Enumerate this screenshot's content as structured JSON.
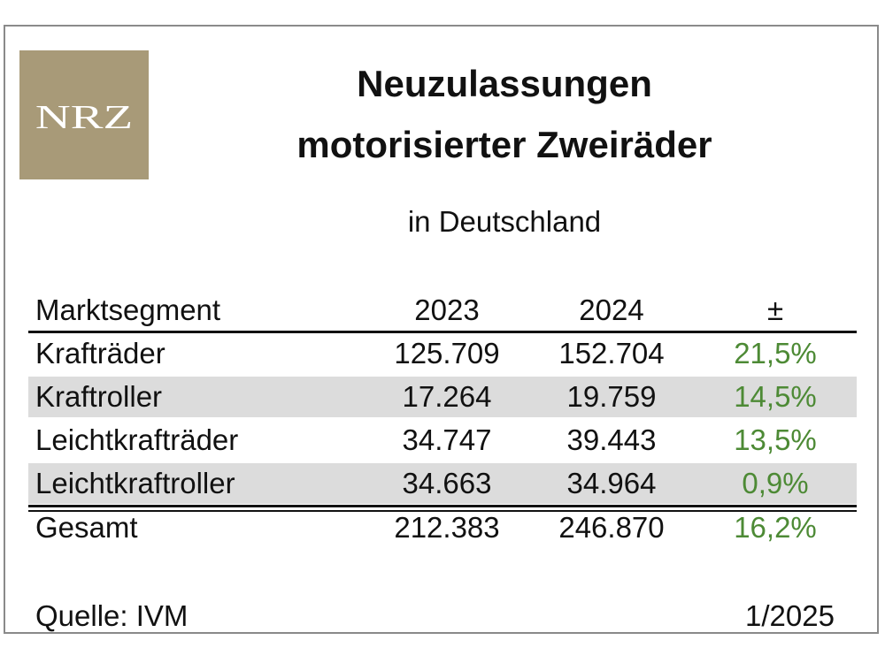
{
  "logo": {
    "text": "NRZ"
  },
  "title": {
    "line1": "Neuzulassungen",
    "line2": "motorisierter Zweiräder"
  },
  "subtitle": "in Deutschland",
  "chart_data": {
    "type": "table",
    "title": "Neuzulassungen motorisierter Zweiräder in Deutschland",
    "columns": [
      "Marktsegment",
      "2023",
      "2024",
      "±"
    ],
    "rows": [
      {
        "segment": "Krafträder",
        "y2023": "125.709",
        "y2024": "152.704",
        "change": "21,5%"
      },
      {
        "segment": "Kraftroller",
        "y2023": "17.264",
        "y2024": "19.759",
        "change": "14,5%"
      },
      {
        "segment": "Leichtkrafträder",
        "y2023": "34.747",
        "y2024": "39.443",
        "change": "13,5%"
      },
      {
        "segment": "Leichtkraftroller",
        "y2023": "34.663",
        "y2024": "34.964",
        "change": "0,9%"
      }
    ],
    "total": {
      "segment": "Gesamt",
      "y2023": "212.383",
      "y2024": "246.870",
      "change": "16,2%"
    }
  },
  "colors": {
    "logo_bg": "#a89a78",
    "change_text": "#4d8a35",
    "row_shade": "#dcdcdc"
  },
  "footer": {
    "source": "Quelle: IVM",
    "date": "1/2025"
  }
}
